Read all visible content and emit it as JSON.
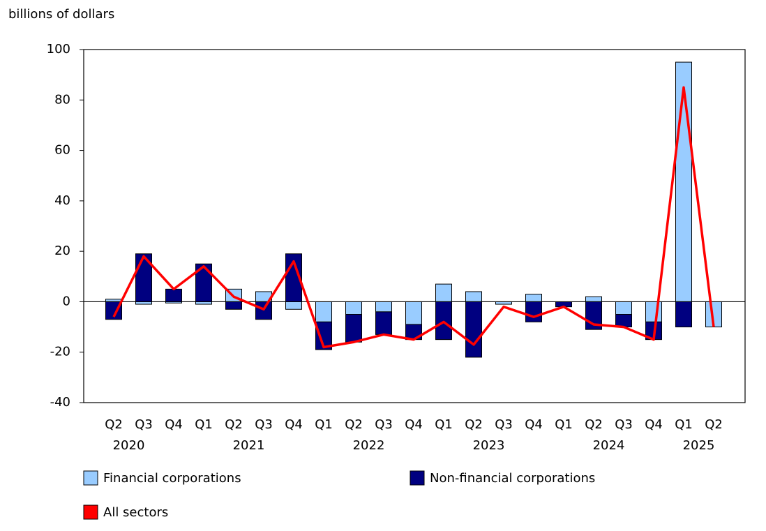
{
  "chart_data": {
    "type": "bar",
    "y_label": "billions of dollars",
    "categories": [
      "Q2",
      "Q3",
      "Q4",
      "Q1",
      "Q2",
      "Q3",
      "Q4",
      "Q1",
      "Q2",
      "Q3",
      "Q4",
      "Q1",
      "Q2",
      "Q3",
      "Q4",
      "Q1",
      "Q2",
      "Q3",
      "Q4",
      "Q1",
      "Q2"
    ],
    "groups": [
      {
        "label": "2020",
        "count": 3
      },
      {
        "label": "2021",
        "count": 4
      },
      {
        "label": "2022",
        "count": 4
      },
      {
        "label": "2023",
        "count": 4
      },
      {
        "label": "2024",
        "count": 4
      },
      {
        "label": "2025",
        "count": 2
      }
    ],
    "series": [
      {
        "name": "Financial corporations",
        "type": "bar",
        "color": "#99ccff",
        "values": [
          1,
          -1,
          -0.5,
          -1,
          5,
          4,
          -3,
          -8,
          -5,
          -4,
          -9,
          7,
          4,
          -1,
          3,
          0,
          2,
          -5,
          -8,
          95,
          -10
        ]
      },
      {
        "name": "Non-financial corporations",
        "type": "bar",
        "color": "#000080",
        "values": [
          -7,
          19,
          5,
          15,
          -3,
          -7,
          19,
          -11,
          -11,
          -9,
          -6,
          -15,
          -22,
          0,
          -8,
          -2,
          -11,
          -5,
          -7,
          -10,
          0
        ]
      },
      {
        "name": "All sectors",
        "type": "line",
        "color": "#ff0000",
        "values": [
          -6,
          18,
          5,
          14,
          2,
          -3,
          16,
          -18,
          -16,
          -13,
          -15,
          -8,
          -17,
          -2,
          -6,
          -2,
          -9,
          -10,
          -15,
          85,
          -10
        ]
      }
    ],
    "ylim": [
      -40,
      100
    ],
    "yticks": [
      -40,
      -20,
      0,
      20,
      40,
      60,
      80,
      100
    ],
    "grid": false
  }
}
